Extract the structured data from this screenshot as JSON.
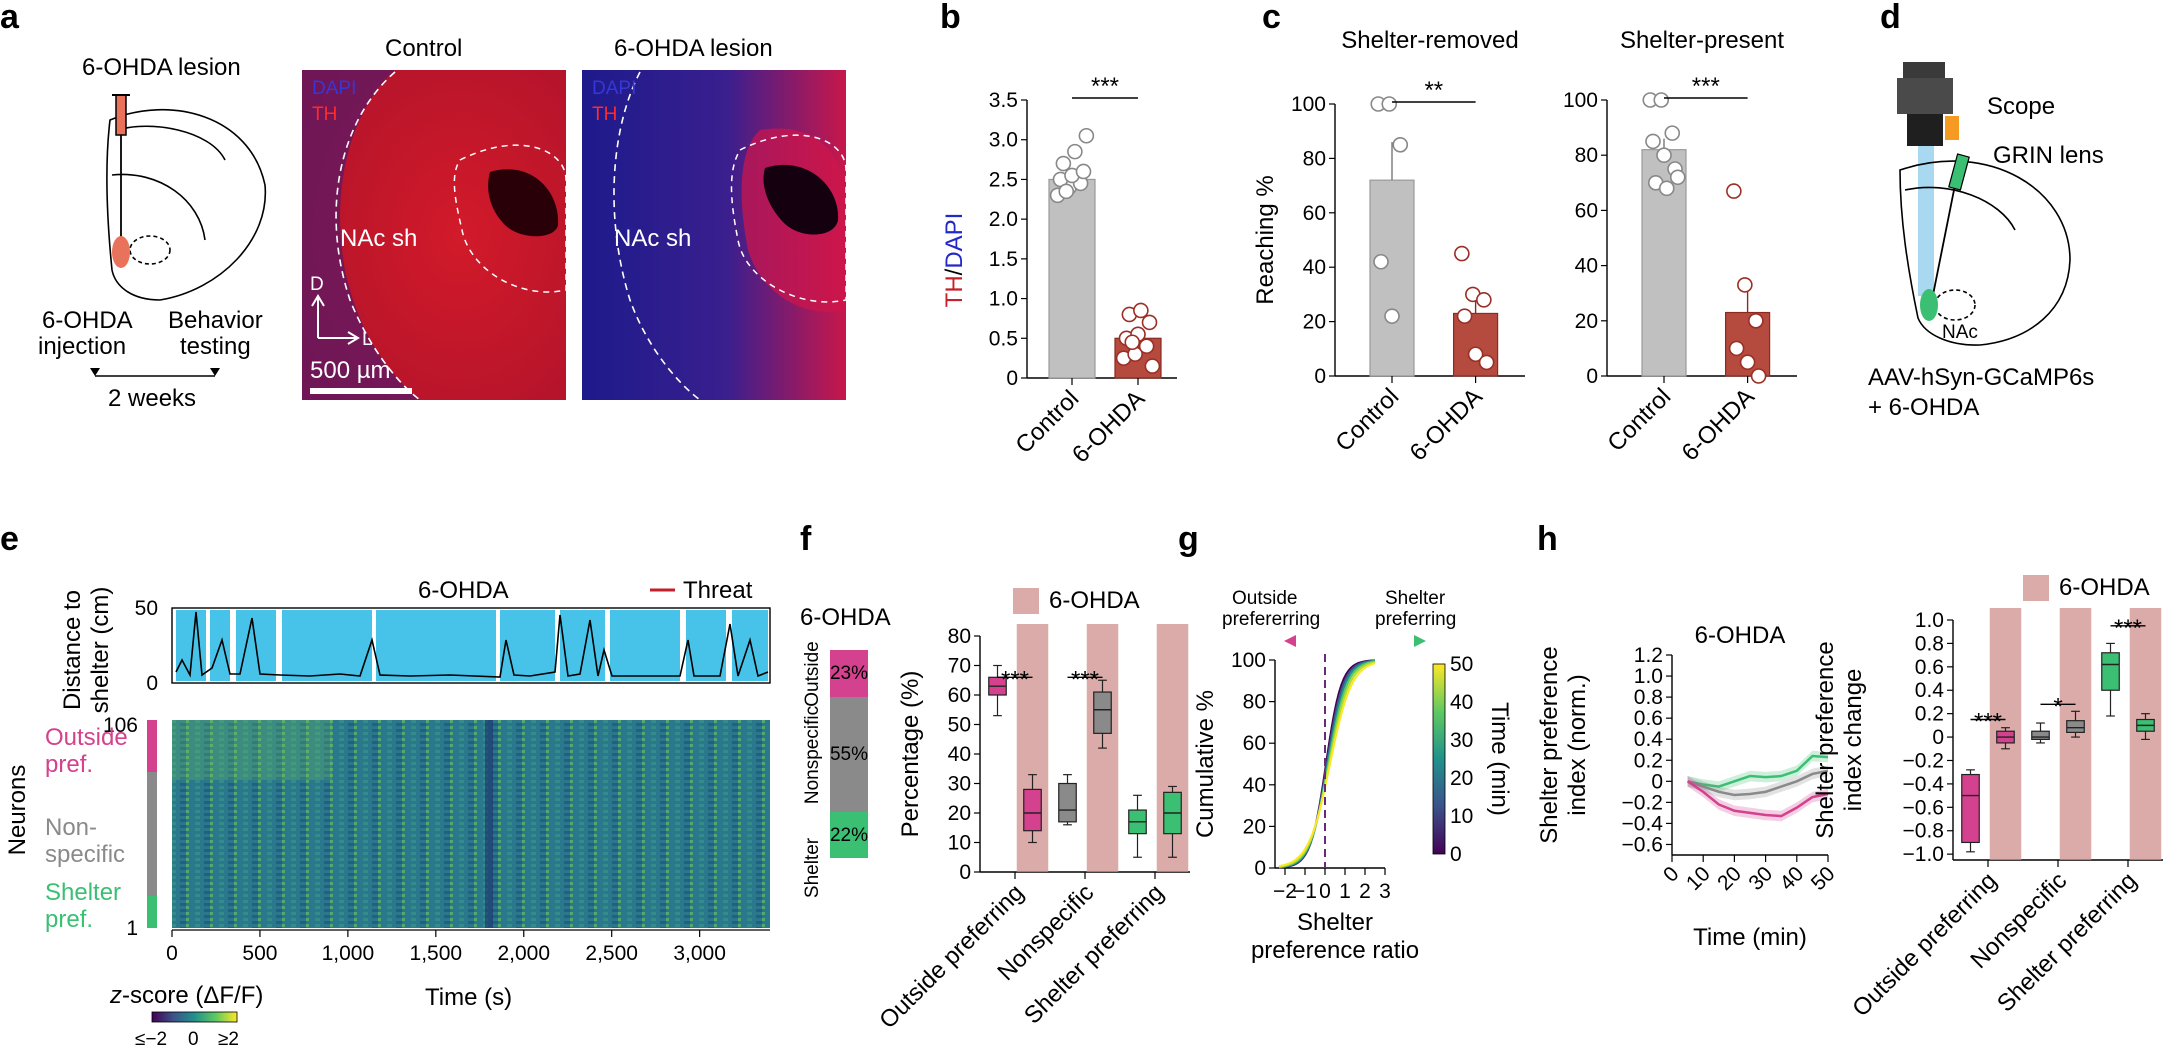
{
  "panel_labels": [
    "a",
    "b",
    "c",
    "d",
    "e",
    "f",
    "g",
    "h"
  ],
  "panel_a": {
    "lesion_title": "6-OHDA lesion",
    "injection": [
      "6-OHDA",
      "injection"
    ],
    "behavior": [
      "Behavior",
      "testing"
    ],
    "interval": "2 weeks",
    "control_title": "Control",
    "lesion_image_title": "6-OHDA lesion",
    "stain_dapi": "DAPI",
    "stain_th": "TH",
    "region": "NAc sh",
    "axis_d": "D",
    "axis_l": "L",
    "scalebar": "500 µm"
  },
  "panel_d": {
    "scope": "Scope",
    "grin": "GRIN lens",
    "region": "NAc",
    "virus_line1": "AAV-hSyn-GCaMP6s",
    "virus_line2": "+ 6-OHDA"
  },
  "panel_e": {
    "title": "6-OHDA",
    "legend_threat": "Threat",
    "ylabel_dist": [
      "Distance to",
      "shelter (cm)"
    ],
    "dist_yticks": [
      "50",
      "0"
    ],
    "neurons_label": "Neurons",
    "neuron_ticks": [
      "106",
      "1"
    ],
    "groups": [
      {
        "label": [
          "Outside",
          "pref."
        ],
        "color": "#d4418e"
      },
      {
        "label": [
          "Non-",
          "specific"
        ],
        "color": "#8a8a8a"
      },
      {
        "label": [
          "Shelter",
          "pref."
        ],
        "color": "#3bbf73"
      }
    ],
    "xticks": [
      "0",
      "500",
      "1,000",
      "1,500",
      "2,000",
      "2,500",
      "3,000"
    ],
    "xlabel": "Time (s)",
    "cbar_title_z": "z",
    "cbar_title_rest": "-score (ΔF/F)",
    "cbar_ticks": [
      "≤−2",
      "0",
      "≥2"
    ]
  },
  "chart_data": [
    {
      "panel": "b",
      "type": "bar",
      "categories": [
        "Control",
        "6-OHDA"
      ],
      "ylabel_th": "TH",
      "ylabel_sep": "/",
      "ylabel_dapi": "DAPI",
      "values": [
        2.5,
        0.5
      ],
      "points": [
        [
          2.3,
          2.4,
          2.45,
          2.5,
          2.55,
          2.6,
          2.7,
          2.85,
          3.05,
          2.35
        ],
        [
          0.25,
          0.3,
          0.4,
          0.5,
          0.55,
          0.7,
          0.8,
          0.85,
          0.15,
          0.45
        ]
      ],
      "yticks": [
        "0",
        "0.5",
        "1.0",
        "1.5",
        "2.0",
        "2.5",
        "3.0",
        "3.5"
      ],
      "ylim": [
        0,
        3.5
      ],
      "significance": "***",
      "colors": [
        "#c0c0c0",
        "#b54a3f"
      ]
    },
    {
      "panel": "c",
      "type": "bar",
      "title": "Shelter-removed",
      "categories": [
        "Control",
        "6-OHDA"
      ],
      "ylabel": "Reaching %",
      "values": [
        72,
        23
      ],
      "points": [
        [
          100,
          100,
          85,
          42,
          22
        ],
        [
          45,
          30,
          28,
          22,
          8,
          5
        ]
      ],
      "error": [
        14,
        7
      ],
      "yticks": [
        "0",
        "20",
        "40",
        "60",
        "80",
        "100"
      ],
      "ylim": [
        0,
        100
      ],
      "significance": "**"
    },
    {
      "panel": "c",
      "type": "bar",
      "title": "Shelter-present",
      "categories": [
        "Control",
        "6-OHDA"
      ],
      "values": [
        82,
        23
      ],
      "points": [
        [
          100,
          100,
          88,
          85,
          80,
          75,
          70,
          68,
          72
        ],
        [
          67,
          33,
          20,
          10,
          5,
          0
        ]
      ],
      "error": [
        4,
        10
      ],
      "yticks": [
        "0",
        "20",
        "40",
        "60",
        "80",
        "100"
      ],
      "ylim": [
        0,
        100
      ],
      "significance": "***"
    },
    {
      "panel": "f",
      "type": "box",
      "title": "6-OHDA",
      "legend": "6-OHDA",
      "stacked_title": "6-OHDA",
      "stacked": [
        {
          "name": "Outside",
          "percent": "23%",
          "color": "#d4418e"
        },
        {
          "name": "Nonspecific",
          "percent": "55%",
          "color": "#8a8a8a"
        },
        {
          "name": "Shelter",
          "percent": "22%",
          "color": "#3bbf73"
        }
      ],
      "ylabel": "Percentage (%)",
      "yticks": [
        "0",
        "10",
        "20",
        "30",
        "40",
        "50",
        "60",
        "70",
        "80"
      ],
      "ylim": [
        0,
        80
      ],
      "categories": [
        "Outside preferring",
        "Nonspecific",
        "Shelter preferring"
      ],
      "boxes": [
        {
          "q1": 60,
          "median": 63,
          "q3": 66,
          "min": 53,
          "max": 70,
          "color": "#d4418e"
        },
        {
          "q1": 14,
          "median": 20,
          "q3": 28,
          "min": 10,
          "max": 33,
          "color": "#d4418e"
        },
        {
          "q1": 17,
          "median": 21,
          "q3": 30,
          "min": 16,
          "max": 33,
          "color": "#8a8a8a"
        },
        {
          "q1": 47,
          "median": 55,
          "q3": 61,
          "min": 42,
          "max": 65,
          "color": "#8a8a8a"
        },
        {
          "q1": 13,
          "median": 17,
          "q3": 21,
          "min": 5,
          "max": 26,
          "color": "#3bbf73"
        },
        {
          "q1": 13,
          "median": 20,
          "q3": 27,
          "min": 5,
          "max": 29,
          "color": "#3bbf73"
        }
      ],
      "significance": [
        "***",
        "***"
      ]
    },
    {
      "panel": "g",
      "type": "line",
      "xlabel": [
        "Shelter",
        "preference ratio"
      ],
      "ylabel": "Cumulative %",
      "xticks": [
        "−2",
        "−1",
        "0",
        "1",
        "2",
        "3"
      ],
      "xlim": [
        -2.5,
        3
      ],
      "yticks": [
        "0",
        "20",
        "40",
        "60",
        "80",
        "100"
      ],
      "ylim": [
        0,
        100
      ],
      "arrow_left": [
        "Outside",
        "prefererring"
      ],
      "arrow_right": [
        "Shelter",
        "preferring"
      ],
      "cbar_label": "Time (min)",
      "cbar_ticks": [
        "0",
        "10",
        "20",
        "30",
        "40",
        "50"
      ]
    },
    {
      "panel": "h",
      "type": "line",
      "title": "6-OHDA",
      "xlabel": "Time (min)",
      "ylabel": [
        "Shelter preference",
        "index (norm.)"
      ],
      "x": [
        5,
        10,
        15,
        20,
        25,
        30,
        35,
        40,
        45,
        50
      ],
      "xticks": [
        "0",
        "10",
        "20",
        "30",
        "40",
        "50"
      ],
      "xlim": [
        0,
        50
      ],
      "yticks": [
        "1.2",
        "1.0",
        "0.8",
        "0.6",
        "0.4",
        "0.2",
        "0",
        "−0.2",
        "−0.4",
        "−0.6"
      ],
      "ylim": [
        -0.7,
        1.2
      ],
      "series": [
        {
          "color": "#3bbf73",
          "values": [
            0,
            -0.03,
            -0.05,
            0.0,
            0.05,
            0.04,
            0.05,
            0.1,
            0.24,
            0.23
          ]
        },
        {
          "color": "#8a8a8a",
          "values": [
            0,
            -0.05,
            -0.1,
            -0.13,
            -0.12,
            -0.1,
            -0.05,
            0.0,
            0.07,
            0.1
          ]
        },
        {
          "color": "#d4418e",
          "values": [
            0,
            -0.1,
            -0.22,
            -0.28,
            -0.3,
            -0.32,
            -0.33,
            -0.25,
            -0.15,
            -0.12
          ]
        }
      ]
    },
    {
      "panel": "h",
      "type": "box",
      "legend": "6-OHDA",
      "ylabel": [
        "Shelter preference",
        "index change"
      ],
      "yticks": [
        "1.0",
        "0.8",
        "0.6",
        "0.4",
        "0.2",
        "0",
        "−0.2",
        "−0.4",
        "−0.6",
        "−0.8",
        "−1.0"
      ],
      "ylim": [
        -1.05,
        1.0
      ],
      "categories": [
        "Outside preferring",
        "Nonspecific",
        "Shelter preferring"
      ],
      "boxes": [
        {
          "q1": -0.9,
          "median": -0.5,
          "q3": -0.32,
          "min": -0.98,
          "max": -0.28,
          "color": "#d4418e"
        },
        {
          "q1": -0.05,
          "median": 0.0,
          "q3": 0.05,
          "min": -0.1,
          "max": 0.08,
          "color": "#d4418e"
        },
        {
          "q1": -0.02,
          "median": 0.0,
          "q3": 0.05,
          "min": -0.05,
          "max": 0.12,
          "color": "#8a8a8a"
        },
        {
          "q1": 0.04,
          "median": 0.08,
          "q3": 0.14,
          "min": 0.0,
          "max": 0.22,
          "color": "#8a8a8a"
        },
        {
          "q1": 0.4,
          "median": 0.62,
          "q3": 0.72,
          "min": 0.18,
          "max": 0.8,
          "color": "#3bbf73"
        },
        {
          "q1": 0.05,
          "median": 0.1,
          "q3": 0.15,
          "min": -0.02,
          "max": 0.2,
          "color": "#3bbf73"
        }
      ],
      "significance": [
        "***",
        "*",
        "***"
      ]
    }
  ]
}
